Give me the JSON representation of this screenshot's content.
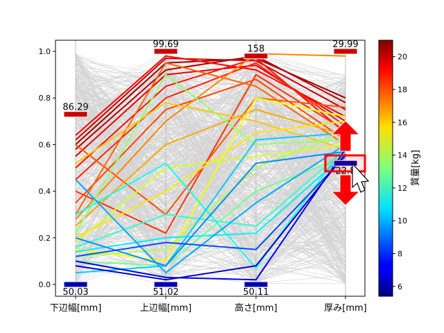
{
  "chart_data": {
    "type": "parallel-coordinates",
    "axes": [
      "下辺幅[mm]",
      "上辺幅[mm]",
      "高さ[mm]",
      "厚み[mm]"
    ],
    "ylim": [
      0,
      1
    ],
    "yticks": [
      "0.0",
      "0.2",
      "0.4",
      "0.6",
      "0.8",
      "1.0"
    ],
    "colorbar": {
      "label": "質量[kg]",
      "range": [
        5.4,
        21
      ],
      "ticks": [
        "6",
        "8",
        "10",
        "12",
        "14",
        "16",
        "18",
        "20"
      ],
      "colormap": "jet"
    },
    "filters": [
      {
        "axis": "下辺幅[mm]",
        "upper": {
          "pos": 0.73,
          "label": "86.29"
        },
        "lower": {
          "pos": 0.0,
          "label": "50.03"
        }
      },
      {
        "axis": "上辺幅[mm]",
        "upper": {
          "pos": 1.0,
          "label": "99.69"
        },
        "lower": {
          "pos": 0.0,
          "label": "51.02"
        }
      },
      {
        "axis": "高さ[mm]",
        "upper": {
          "pos": 0.98,
          "label": "158"
        },
        "lower": {
          "pos": 0.0,
          "label": "50.11"
        }
      },
      {
        "axis": "厚み[mm]",
        "upper": {
          "pos": 1.0,
          "label": "29.99"
        },
        "lower": {
          "pos": 0.52,
          "label": "22.8"
        }
      }
    ],
    "highlighted_lines": [
      [
        0.6,
        0.95,
        0.97,
        0.8,
        20.5
      ],
      [
        0.58,
        0.92,
        0.98,
        0.78,
        20.2
      ],
      [
        0.62,
        0.97,
        0.96,
        0.75,
        19.8
      ],
      [
        0.55,
        0.9,
        0.94,
        0.7,
        19.5
      ],
      [
        0.64,
        0.98,
        0.92,
        0.72,
        19.0
      ],
      [
        0.5,
        0.85,
        0.97,
        0.65,
        18.8
      ],
      [
        0.45,
        0.8,
        0.95,
        0.68,
        18.5
      ],
      [
        0.4,
        0.22,
        0.9,
        0.66,
        18.3
      ],
      [
        0.35,
        0.75,
        0.88,
        0.62,
        18.0
      ],
      [
        0.6,
        0.3,
        0.8,
        0.76,
        17.8
      ],
      [
        0.3,
        0.95,
        0.85,
        0.6,
        17.5
      ],
      [
        0.28,
        0.7,
        0.99,
        0.98,
        17.0
      ],
      [
        0.25,
        0.6,
        0.75,
        0.64,
        16.5
      ],
      [
        0.52,
        0.78,
        0.7,
        0.58,
        16.0
      ],
      [
        0.2,
        0.4,
        0.65,
        0.7,
        15.5
      ],
      [
        0.15,
        0.1,
        0.8,
        0.72,
        15.0
      ],
      [
        0.18,
        0.5,
        0.55,
        0.6,
        14.5
      ],
      [
        0.12,
        0.15,
        0.5,
        0.66,
        14.0
      ],
      [
        0.22,
        0.9,
        0.6,
        0.62,
        13.5
      ],
      [
        0.1,
        0.08,
        0.4,
        0.55,
        13.0
      ],
      [
        0.16,
        0.3,
        0.25,
        0.58,
        12.0
      ],
      [
        0.3,
        0.52,
        0.07,
        0.6,
        11.5
      ],
      [
        0.14,
        0.2,
        0.22,
        0.56,
        11.0
      ],
      [
        0.05,
        0.08,
        0.62,
        0.65,
        10.5
      ],
      [
        0.45,
        0.05,
        0.35,
        0.6,
        10.0
      ],
      [
        0.2,
        0.08,
        0.52,
        0.57,
        9.5
      ],
      [
        0.12,
        0.18,
        0.15,
        0.55,
        8.5
      ],
      [
        0.1,
        0.03,
        0.02,
        0.58,
        7.0
      ],
      [
        0.08,
        0.02,
        0.08,
        0.56,
        6.5
      ]
    ]
  },
  "colors": {
    "grey": "#d3d3d3",
    "handle_upper": "#cc0000",
    "handle_lower": "#0000b0",
    "highlight": "#ff0000"
  }
}
